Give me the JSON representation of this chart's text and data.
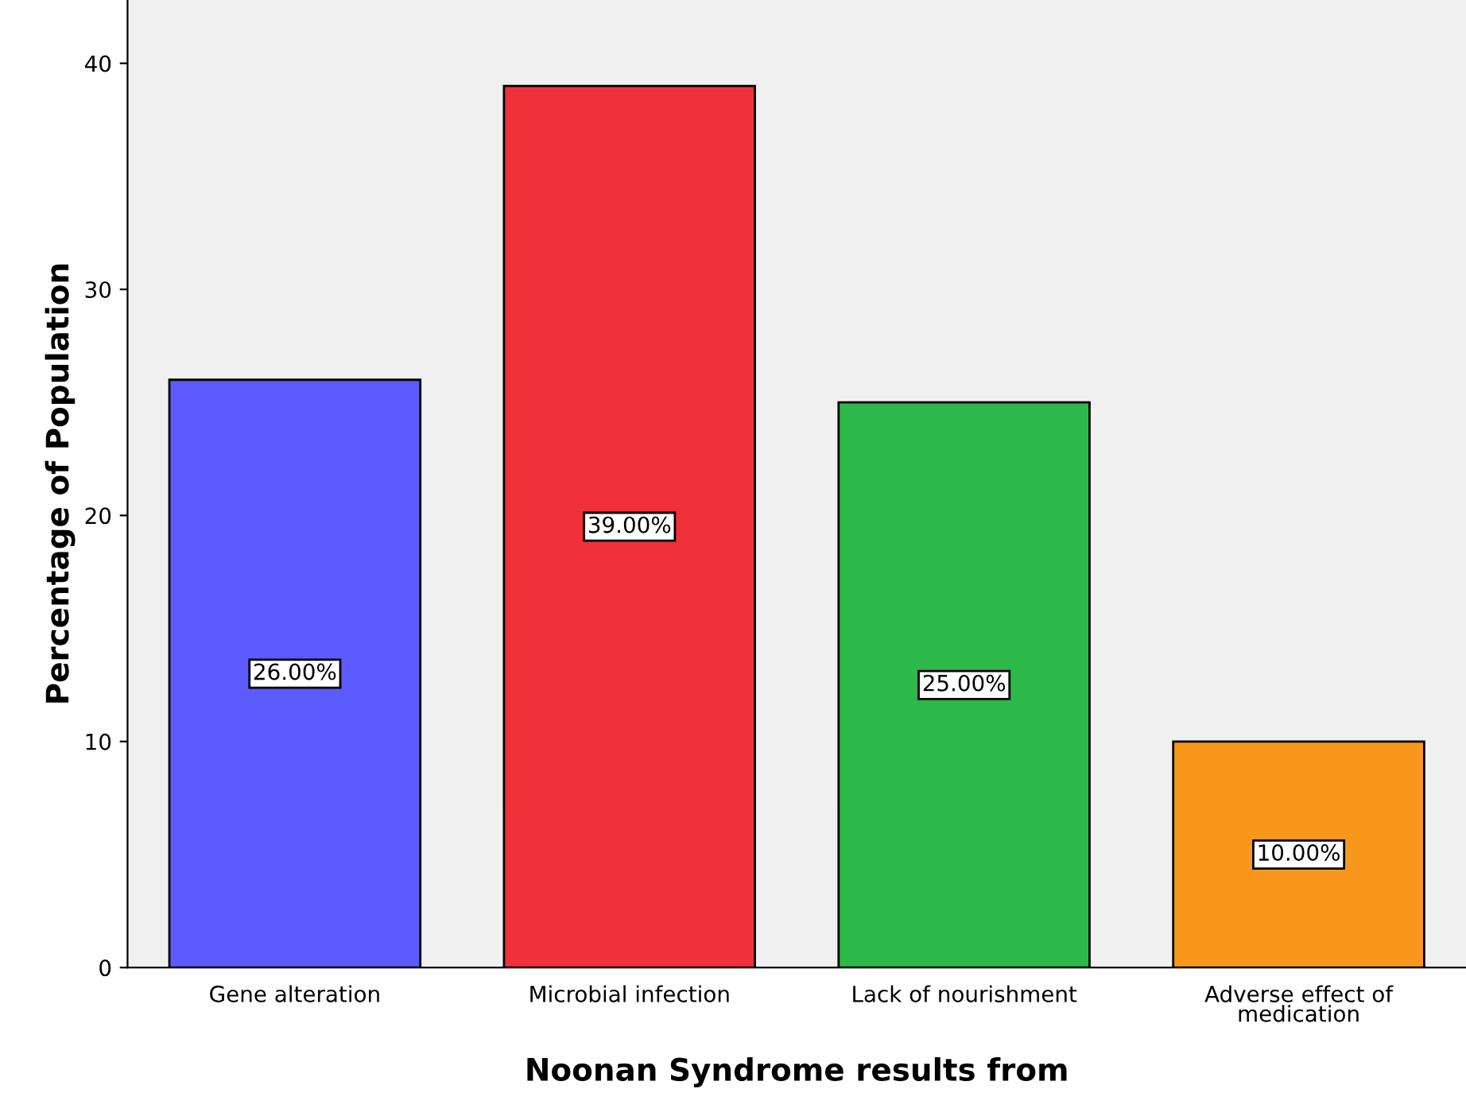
{
  "chart_data": {
    "type": "bar",
    "xlabel": "Noonan Syndrome results from",
    "ylabel": "Percentage of Population",
    "categories": [
      "Gene alteration",
      "Microbial infection",
      "Lack of nourishment",
      "Adverse effect of\nmedication"
    ],
    "values": [
      26,
      39,
      25,
      10
    ],
    "colors": [
      "#5b5bff",
      "#f0313a",
      "#2db84a",
      "#f7981c"
    ],
    "value_labels": [
      "26.00%",
      "39.00%",
      "25.00%",
      "10.00%"
    ],
    "ylim": [
      0,
      42.8
    ],
    "yticks": [
      0,
      10,
      20,
      30,
      40
    ],
    "grid": false,
    "legend": false
  }
}
